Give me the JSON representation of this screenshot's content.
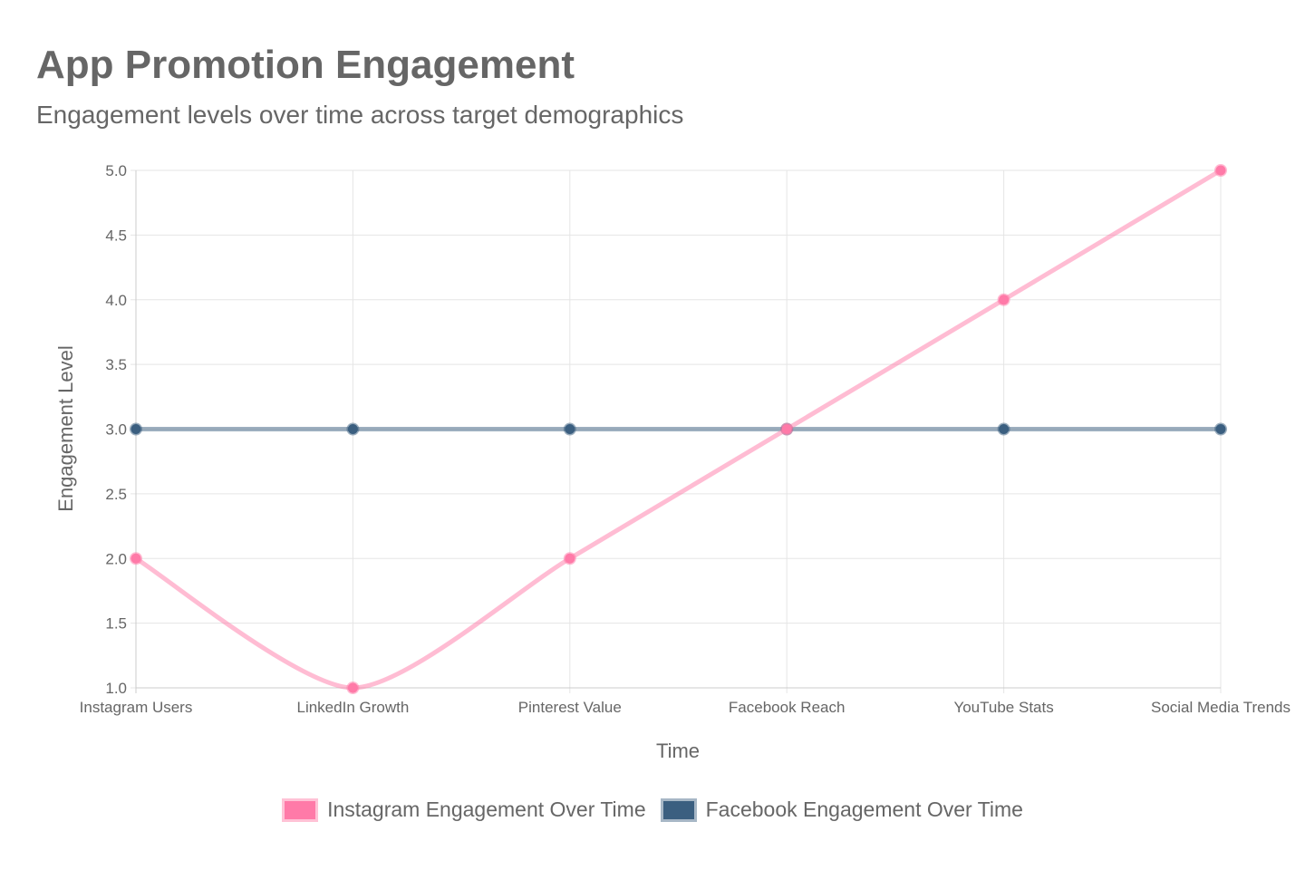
{
  "header": {
    "title": "App Promotion Engagement",
    "subtitle": "Engagement levels over time across target demographics"
  },
  "legend": {
    "items": [
      {
        "label": "Instagram Engagement Over Time",
        "color": "#ff7aa8",
        "border": "#ffc2d6"
      },
      {
        "label": "Facebook Engagement Over Time",
        "color": "#3b5f80",
        "border": "#a7b7c6"
      }
    ]
  },
  "chart_data": {
    "type": "line",
    "title": "App Promotion Engagement",
    "subtitle": "Engagement levels over time across target demographics",
    "xlabel": "Time",
    "ylabel": "Engagement Level",
    "categories": [
      "Instagram Users",
      "LinkedIn Growth",
      "Pinterest Value",
      "Facebook Reach",
      "YouTube Stats",
      "Social Media Trends"
    ],
    "series": [
      {
        "name": "Instagram Engagement Over Time",
        "values": [
          2,
          1,
          2,
          3,
          4,
          5
        ],
        "color": "#ff7aa8"
      },
      {
        "name": "Facebook Engagement Over Time",
        "values": [
          3,
          3,
          3,
          3,
          3,
          3
        ],
        "color": "#3b5f80"
      }
    ],
    "ylim": [
      1.0,
      5.0
    ],
    "yticks": [
      "1.0",
      "1.5",
      "2.0",
      "2.5",
      "3.0",
      "3.5",
      "4.0",
      "4.5",
      "5.0"
    ],
    "grid": true,
    "legend_position": "bottom"
  }
}
